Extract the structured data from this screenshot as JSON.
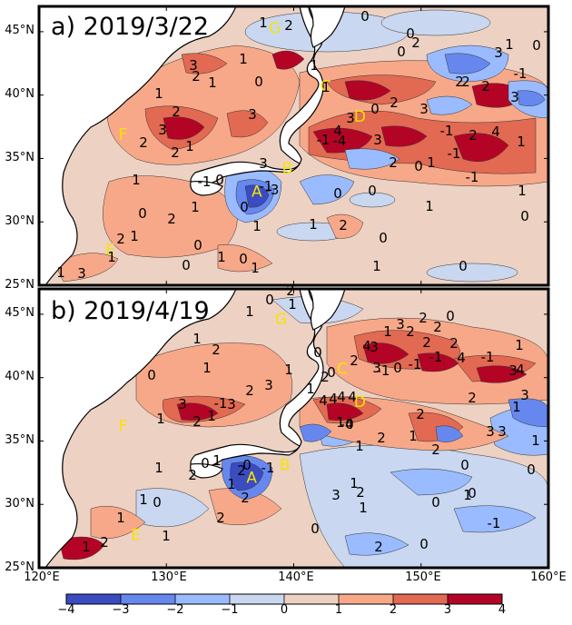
{
  "panels": [
    {
      "title": "a) 2019/3/22",
      "region_labels": [
        "G",
        "C",
        "D",
        "F",
        "B",
        "A",
        "E"
      ],
      "contour_labels": [
        "0",
        "1",
        "2",
        "3",
        "-1",
        "-2",
        "-3",
        "-4",
        "4"
      ]
    },
    {
      "title": "b) 2019/4/19",
      "region_labels": [
        "G",
        "C",
        "D",
        "F",
        "B",
        "A",
        "E"
      ],
      "contour_labels": [
        "0",
        "1",
        "2",
        "3",
        "-1",
        "-2",
        "-3",
        "-4",
        "4"
      ]
    }
  ],
  "axes": {
    "lat_ticks": [
      "45°N",
      "40°N",
      "35°N",
      "30°N",
      "25°N"
    ],
    "lat_values": [
      45,
      40,
      35,
      30,
      25
    ],
    "lon_ticks": [
      "120°E",
      "130°E",
      "140°E",
      "150°E",
      "160°E"
    ],
    "lon_values": [
      120,
      130,
      140,
      150,
      160
    ],
    "lat_range": [
      25,
      47
    ],
    "lon_range": [
      120,
      160
    ]
  },
  "colorbar": {
    "ticks": [
      "−4",
      "−3",
      "−2",
      "−1",
      "0",
      "1",
      "2",
      "3",
      "4"
    ],
    "range": [
      -4,
      4
    ],
    "colors": [
      "#3a4cc0",
      "#6688ee",
      "#9abbff",
      "#c9d7f0",
      "#edd1c2",
      "#f7a889",
      "#e26952",
      "#b40426"
    ]
  }
}
